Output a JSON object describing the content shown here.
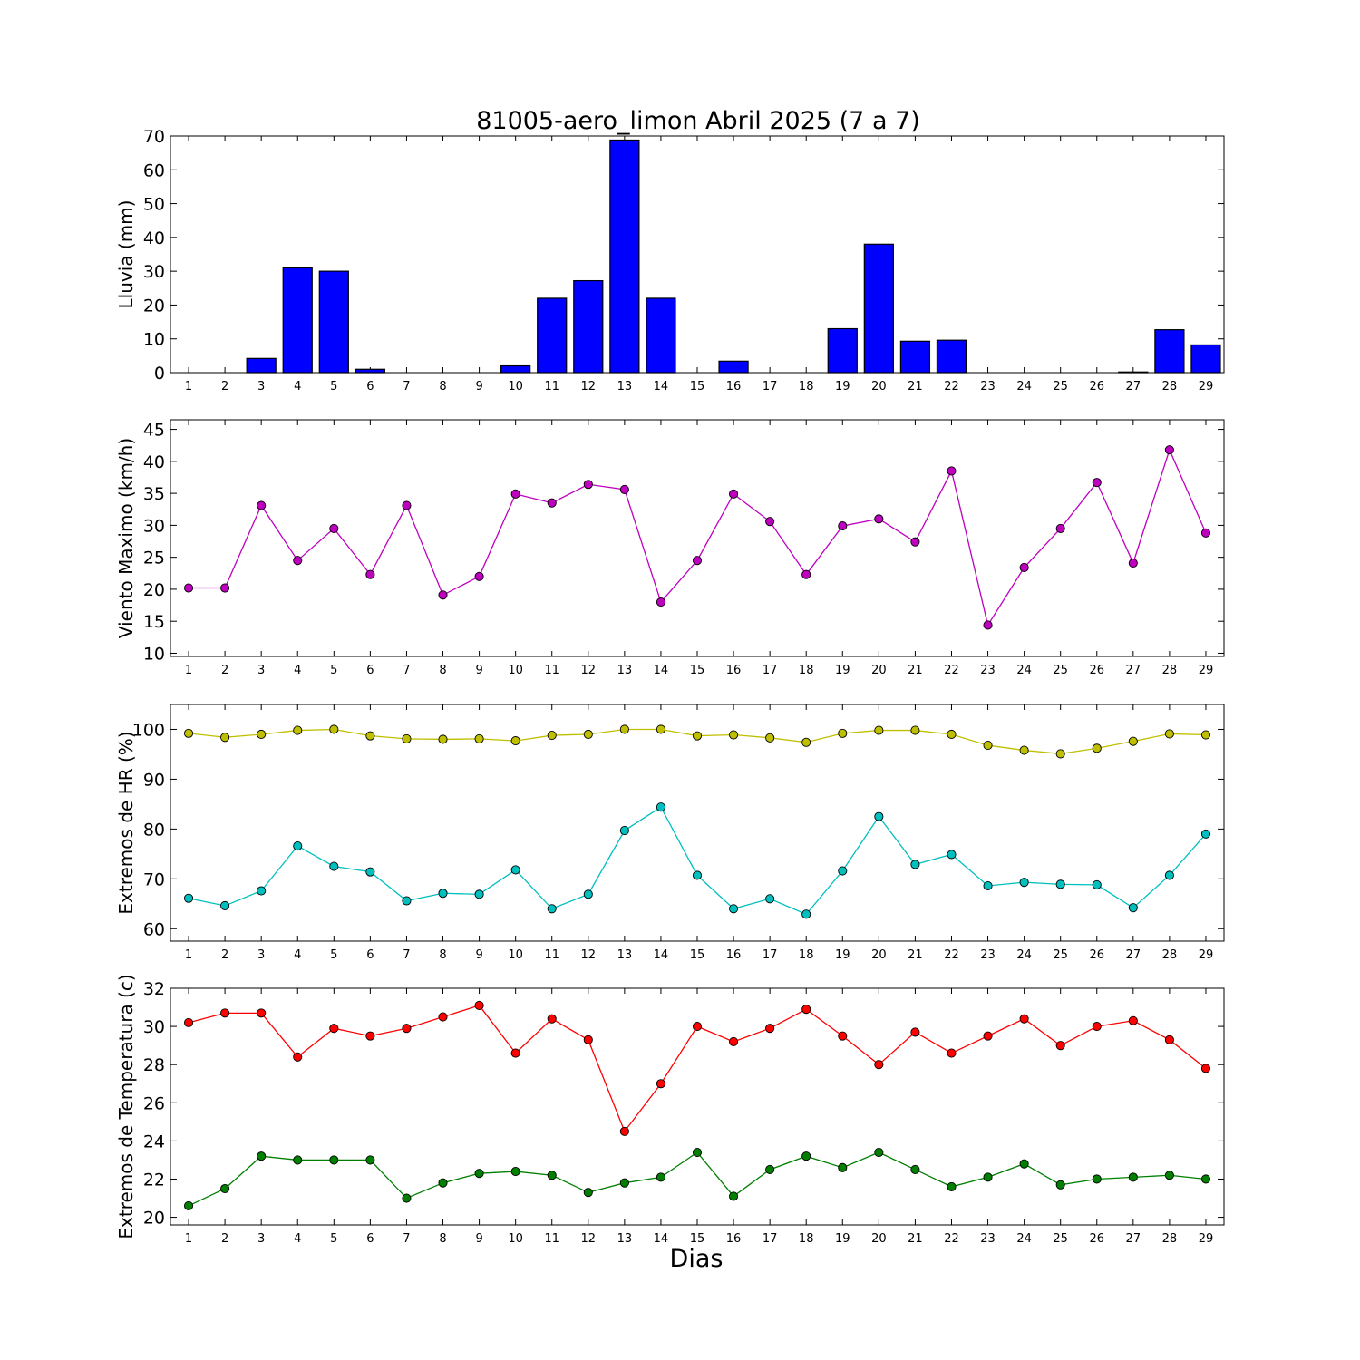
{
  "title": "81005-aero_limon Abril 2025  (7 a 7)",
  "xlabel": "Dias",
  "days": [
    1,
    2,
    3,
    4,
    5,
    6,
    7,
    8,
    9,
    10,
    11,
    12,
    13,
    14,
    15,
    16,
    17,
    18,
    19,
    20,
    21,
    22,
    23,
    24,
    25,
    26,
    27,
    28,
    29
  ],
  "chart_data": [
    {
      "type": "bar",
      "ylabel": "Lluvia (mm)",
      "ylim": [
        0,
        70
      ],
      "yticks": [
        0,
        10,
        20,
        30,
        40,
        50,
        60,
        70
      ],
      "series": [
        {
          "color": "#0000ff",
          "values": [
            0,
            0,
            4.2,
            31,
            30,
            1,
            0,
            0,
            0,
            2,
            22,
            27.2,
            68.8,
            22,
            0,
            3.4,
            0,
            0,
            13,
            38,
            9.3,
            9.6,
            0,
            0,
            0,
            0,
            0.2,
            12.7,
            8.2
          ]
        }
      ]
    },
    {
      "type": "line",
      "ylabel": "Viento Maximo (km/h)",
      "ylim": [
        9.5,
        46.5
      ],
      "yticks": [
        10,
        15,
        20,
        25,
        30,
        35,
        40,
        45
      ],
      "series": [
        {
          "color": "#bf00bf",
          "values": [
            20.2,
            20.2,
            33.1,
            24.5,
            29.5,
            22.3,
            33.1,
            19.1,
            22,
            34.9,
            33.5,
            36.4,
            35.6,
            18,
            24.5,
            34.9,
            30.6,
            22.3,
            29.9,
            31,
            27.4,
            38.5,
            14.4,
            23.4,
            29.5,
            36.7,
            24.1,
            41.8,
            28.8
          ]
        }
      ]
    },
    {
      "type": "line",
      "ylabel": "Extremos de HR (%)",
      "ylim": [
        57.5,
        105
      ],
      "yticks": [
        60,
        70,
        80,
        90,
        100
      ],
      "series": [
        {
          "color": "#bfbf00",
          "values": [
            99.2,
            98.4,
            99,
            99.8,
            100,
            98.7,
            98.1,
            98,
            98.1,
            97.7,
            98.8,
            99,
            100,
            100,
            98.7,
            98.9,
            98.3,
            97.4,
            99.2,
            99.8,
            99.8,
            99,
            96.8,
            95.8,
            95.1,
            96.2,
            97.6,
            99.1,
            98.9
          ]
        },
        {
          "color": "#00bfbf",
          "values": [
            66.1,
            64.6,
            67.6,
            76.6,
            72.5,
            71.4,
            65.6,
            67.1,
            66.9,
            71.8,
            64,
            66.9,
            79.7,
            84.4,
            70.7,
            64,
            66,
            62.9,
            71.6,
            82.5,
            72.9,
            74.9,
            68.6,
            69.3,
            68.9,
            68.8,
            64.2,
            70.7,
            79
          ]
        }
      ]
    },
    {
      "type": "line",
      "ylabel": "Extremos de Temperatura (c)",
      "ylim": [
        19.6,
        32
      ],
      "yticks": [
        20,
        22,
        24,
        26,
        28,
        30,
        32
      ],
      "series": [
        {
          "color": "#ff0000",
          "values": [
            30.2,
            30.7,
            30.7,
            28.4,
            29.9,
            29.5,
            29.9,
            30.5,
            31.1,
            28.6,
            30.4,
            29.3,
            24.5,
            27,
            30,
            29.2,
            29.9,
            30.9,
            29.5,
            28,
            29.7,
            28.6,
            29.5,
            30.4,
            29,
            30,
            30.3,
            29.3,
            27.8
          ]
        },
        {
          "color": "#007f00",
          "values": [
            20.6,
            21.5,
            23.2,
            23,
            23,
            23,
            21,
            21.8,
            22.3,
            22.4,
            22.2,
            21.3,
            21.8,
            22.1,
            23.4,
            21.1,
            22.5,
            23.2,
            22.6,
            23.4,
            22.5,
            21.6,
            22.1,
            22.8,
            21.7,
            22,
            22.1,
            22.2,
            22
          ]
        }
      ]
    }
  ]
}
